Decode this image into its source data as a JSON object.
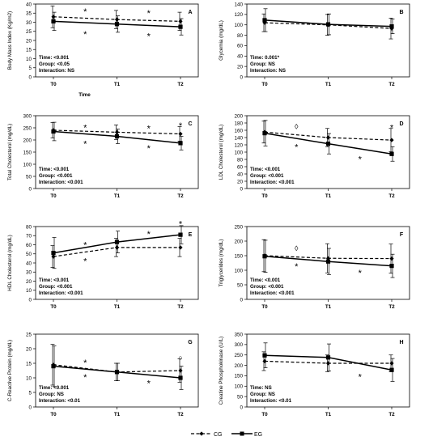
{
  "figure": {
    "legend": {
      "cg_label": "CG",
      "eg_label": "EG"
    }
  },
  "chart_data": [
    {
      "type": "line",
      "panel": "A",
      "title": "",
      "ylabel": "Body Mass Index (Kg/m2)",
      "xlabel": "Time",
      "categories": [
        "T0",
        "T1",
        "T2"
      ],
      "ylim": [
        0,
        40
      ],
      "yticks": [
        0,
        5,
        10,
        15,
        20,
        25,
        30,
        35,
        40
      ],
      "series": [
        {
          "name": "CG",
          "style": "dashed",
          "marker": "diamond",
          "values": [
            33,
            31.5,
            30.5
          ],
          "err": [
            6,
            5,
            5
          ]
        },
        {
          "name": "EG",
          "style": "solid",
          "marker": "square",
          "values": [
            30.5,
            29,
            27.5
          ],
          "err": [
            5,
            4.5,
            4.5
          ]
        }
      ],
      "stats": [
        "Time: <0.001",
        "Group: <0.05",
        "Interaction: NS"
      ],
      "annotations": [
        {
          "symbol": "*",
          "x": 0.5,
          "y": 36.5
        },
        {
          "symbol": "*",
          "x": 1.5,
          "y": 35.5
        },
        {
          "symbol": "*",
          "x": 0.5,
          "y": 24
        },
        {
          "symbol": "*",
          "x": 1.5,
          "y": 23
        }
      ]
    },
    {
      "type": "line",
      "panel": "B",
      "title": "",
      "ylabel": "Glycemia (mg/dL)",
      "xlabel": "",
      "categories": [
        "T0",
        "T1",
        "T2"
      ],
      "ylim": [
        0,
        140
      ],
      "yticks": [
        0,
        20,
        40,
        60,
        80,
        100,
        120,
        140
      ],
      "series": [
        {
          "name": "CG",
          "style": "dashed",
          "marker": "diamond",
          "values": [
            104,
            100,
            93
          ],
          "err": [
            17,
            20,
            20
          ]
        },
        {
          "name": "EG",
          "style": "solid",
          "marker": "square",
          "values": [
            109,
            101,
            97
          ],
          "err": [
            22,
            20,
            14
          ]
        }
      ],
      "stats": [
        "Time: 0.001*",
        "Group: NS",
        "Interaction: NS"
      ],
      "annotations": []
    },
    {
      "type": "line",
      "panel": "C",
      "title": "",
      "ylabel": "Total Cholesterol (mg/dL)",
      "xlabel": "",
      "categories": [
        "T0",
        "T1",
        "T2"
      ],
      "ylim": [
        0,
        300
      ],
      "yticks": [
        0,
        50,
        100,
        150,
        200,
        250,
        300
      ],
      "series": [
        {
          "name": "CG",
          "style": "dashed",
          "marker": "diamond",
          "values": [
            240,
            232,
            225
          ],
          "err": [
            32,
            30,
            30
          ]
        },
        {
          "name": "EG",
          "style": "solid",
          "marker": "square",
          "values": [
            235,
            215,
            187
          ],
          "err": [
            38,
            30,
            28
          ]
        }
      ],
      "stats": [
        "Time: <0.001",
        "Group: <0.001",
        "Interaction: <0.001"
      ],
      "annotations": [
        {
          "symbol": "*",
          "x": 0.5,
          "y": 255
        },
        {
          "symbol": "*",
          "x": 0.5,
          "y": 188
        },
        {
          "symbol": "*",
          "x": 1.5,
          "y": 252
        },
        {
          "symbol": "*",
          "x": 1.5,
          "y": 170
        },
        {
          "symbol": "*",
          "x": 2,
          "y": 263
        }
      ]
    },
    {
      "type": "line",
      "panel": "D",
      "title": "",
      "ylabel": "LDL Cholesterol (mg/dL)",
      "xlabel": "",
      "categories": [
        "T0",
        "T1",
        "T2"
      ],
      "ylim": [
        0,
        200
      ],
      "yticks": [
        0,
        20,
        40,
        60,
        80,
        100,
        120,
        140,
        160,
        180,
        200
      ],
      "series": [
        {
          "name": "CG",
          "style": "dashed",
          "marker": "diamond",
          "values": [
            155,
            140,
            133
          ],
          "err": [
            30,
            25,
            32
          ]
        },
        {
          "name": "EG",
          "style": "solid",
          "marker": "square",
          "values": [
            152,
            123,
            95
          ],
          "err": [
            35,
            28,
            20
          ]
        }
      ],
      "stats": [
        "Time: <0.001",
        "Group: <0.001",
        "Interaction: <0.001"
      ],
      "annotations": [
        {
          "symbol": "◊",
          "x": 0.5,
          "y": 170
        },
        {
          "symbol": "*",
          "x": 0.5,
          "y": 117
        },
        {
          "symbol": "*",
          "x": 1.5,
          "y": 83
        },
        {
          "symbol": "*",
          "x": 2,
          "y": 170
        }
      ]
    },
    {
      "type": "line",
      "panel": "E",
      "title": "",
      "ylabel": "HDL Cholesterol (mg/dL)",
      "xlabel": "",
      "categories": [
        "T0",
        "T1",
        "T2"
      ],
      "ylim": [
        0,
        80
      ],
      "yticks": [
        0,
        10,
        20,
        30,
        40,
        50,
        60,
        70,
        80
      ],
      "series": [
        {
          "name": "CG",
          "style": "dashed",
          "marker": "diamond",
          "values": [
            47,
            57,
            57
          ],
          "err": [
            12,
            10,
            10
          ]
        },
        {
          "name": "EG",
          "style": "solid",
          "marker": "square",
          "values": [
            51,
            63,
            71
          ],
          "err": [
            17,
            12,
            10
          ]
        }
      ],
      "stats": [
        "Time: <0.001",
        "Group: <0.001",
        "Interaction: <0.001"
      ],
      "annotations": [
        {
          "symbol": "*",
          "x": 0.5,
          "y": 61
        },
        {
          "symbol": "*",
          "x": 0.5,
          "y": 43
        },
        {
          "symbol": "*",
          "x": 1.5,
          "y": 73
        },
        {
          "symbol": "*",
          "x": 2,
          "y": 84
        }
      ]
    },
    {
      "type": "line",
      "panel": "F",
      "title": "",
      "ylabel": "Triglycerides (mg/dL)",
      "xlabel": "",
      "categories": [
        "T0",
        "T1",
        "T2"
      ],
      "ylim": [
        0,
        250
      ],
      "yticks": [
        0,
        50,
        100,
        150,
        200,
        250
      ],
      "series": [
        {
          "name": "CG",
          "style": "dashed",
          "marker": "diamond",
          "values": [
            150,
            141,
            140
          ],
          "err": [
            55,
            50,
            50
          ]
        },
        {
          "name": "EG",
          "style": "solid",
          "marker": "square",
          "values": [
            148,
            130,
            115
          ],
          "err": [
            55,
            45,
            40
          ]
        }
      ],
      "stats": [
        "Time: <0.001",
        "Group: <0.001",
        "Interaction: <0.001"
      ],
      "annotations": [
        {
          "symbol": "◊",
          "x": 0.5,
          "y": 175
        },
        {
          "symbol": "*",
          "x": 0.5,
          "y": 117
        },
        {
          "symbol": "*",
          "x": 1.5,
          "y": 95
        }
      ]
    },
    {
      "type": "line",
      "panel": "G",
      "title": "",
      "ylabel": "C-Reactive Protein (mg/dL)",
      "xlabel": "",
      "categories": [
        "T0",
        "T1",
        "T2"
      ],
      "ylim": [
        0,
        25
      ],
      "yticks": [
        0,
        5,
        10,
        15,
        20,
        25
      ],
      "series": [
        {
          "name": "CG",
          "style": "dashed",
          "marker": "diamond",
          "values": [
            14.5,
            12,
            12.5
          ],
          "err": [
            7,
            3,
            4
          ]
        },
        {
          "name": "EG",
          "style": "solid",
          "marker": "square",
          "values": [
            14,
            12,
            10
          ],
          "err": [
            7,
            3,
            4
          ]
        }
      ],
      "stats": [
        "Time: <0.001",
        "Group: NS",
        "Interaction: <0.01"
      ],
      "annotations": [
        {
          "symbol": "*",
          "x": 0.5,
          "y": 15.5
        },
        {
          "symbol": "*",
          "x": 0.5,
          "y": 10.5
        },
        {
          "symbol": "*",
          "x": 1.5,
          "y": 8.5
        },
        {
          "symbol": "○",
          "x": 2,
          "y": 17
        }
      ]
    },
    {
      "type": "line",
      "panel": "H",
      "title": "",
      "ylabel": "Creatine Phosphokinase (U/L)",
      "xlabel": "",
      "categories": [
        "T0",
        "T1",
        "T2"
      ],
      "ylim": [
        0,
        350
      ],
      "yticks": [
        0,
        50,
        100,
        150,
        200,
        250,
        300,
        350
      ],
      "series": [
        {
          "name": "CG",
          "style": "dashed",
          "marker": "diamond",
          "values": [
            220,
            210,
            210
          ],
          "err": [
            45,
            40,
            40
          ]
        },
        {
          "name": "EG",
          "style": "solid",
          "marker": "square",
          "values": [
            248,
            238,
            178
          ],
          "err": [
            60,
            65,
            55
          ]
        }
      ],
      "stats": [
        "Time: NS",
        "Group: NS",
        "Interaction: <0.01"
      ],
      "annotations": [
        {
          "symbol": "*",
          "x": 1.5,
          "y": 150
        }
      ]
    }
  ]
}
